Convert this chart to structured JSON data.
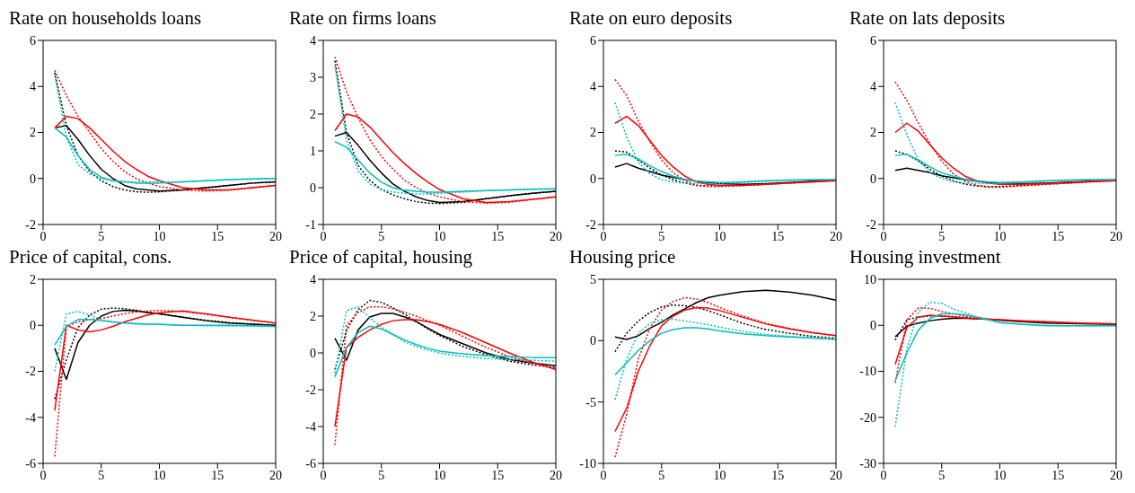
{
  "chart_data": [
    {
      "type": "line",
      "title": "Rate on households loans",
      "x": [
        1,
        2,
        3,
        4,
        5,
        6,
        7,
        8,
        9,
        10,
        12,
        14,
        16,
        18,
        20
      ],
      "xlim": [
        0,
        20
      ],
      "xticks": [
        0,
        5,
        10,
        15,
        20
      ],
      "ylim": [
        -2,
        6
      ],
      "yticks": [
        -2,
        0,
        2,
        4,
        6
      ],
      "marker": "none",
      "series": [
        {
          "color": "#000000",
          "line_style": "solid",
          "values": [
            2.2,
            2.3,
            1.7,
            1.0,
            0.4,
            0.0,
            -0.3,
            -0.45,
            -0.5,
            -0.55,
            -0.5,
            -0.4,
            -0.3,
            -0.2,
            -0.15
          ]
        },
        {
          "color": "#000000",
          "line_style": "dotted",
          "values": [
            4.6,
            2.3,
            1.0,
            0.3,
            -0.1,
            -0.35,
            -0.5,
            -0.58,
            -0.6,
            -0.58,
            -0.5,
            -0.4,
            -0.3,
            -0.2,
            -0.15
          ]
        },
        {
          "color": "#ff0000",
          "line_style": "solid",
          "values": [
            2.2,
            2.7,
            2.6,
            2.2,
            1.7,
            1.2,
            0.75,
            0.4,
            0.1,
            -0.1,
            -0.4,
            -0.5,
            -0.5,
            -0.4,
            -0.3
          ]
        },
        {
          "color": "#ff0000",
          "line_style": "dotted",
          "values": [
            4.7,
            3.6,
            2.7,
            2.0,
            1.3,
            0.75,
            0.3,
            0.0,
            -0.2,
            -0.35,
            -0.5,
            -0.55,
            -0.5,
            -0.4,
            -0.3
          ]
        },
        {
          "color": "#00bfbf",
          "line_style": "solid",
          "values": [
            2.2,
            1.8,
            1.0,
            0.4,
            0.05,
            -0.1,
            -0.15,
            -0.2,
            -0.2,
            -0.2,
            -0.15,
            -0.1,
            -0.05,
            -0.02,
            0.0
          ]
        },
        {
          "color": "#00bfbf",
          "line_style": "dotted",
          "values": [
            4.5,
            1.8,
            0.6,
            0.2,
            0.0,
            -0.1,
            -0.15,
            -0.15,
            -0.15,
            -0.15,
            -0.15,
            -0.1,
            -0.05,
            -0.02,
            0.0
          ]
        }
      ]
    },
    {
      "type": "line",
      "title": "Rate on firms loans",
      "x": [
        1,
        2,
        3,
        4,
        5,
        6,
        7,
        8,
        9,
        10,
        12,
        14,
        16,
        18,
        20
      ],
      "xlim": [
        0,
        20
      ],
      "xticks": [
        0,
        5,
        10,
        15,
        20
      ],
      "ylim": [
        -1,
        4
      ],
      "yticks": [
        -1,
        0,
        1,
        2,
        3,
        4
      ],
      "marker": "none",
      "series": [
        {
          "color": "#000000",
          "line_style": "solid",
          "values": [
            1.4,
            1.5,
            1.15,
            0.75,
            0.4,
            0.1,
            -0.1,
            -0.25,
            -0.35,
            -0.4,
            -0.38,
            -0.3,
            -0.22,
            -0.15,
            -0.1
          ]
        },
        {
          "color": "#000000",
          "line_style": "dotted",
          "values": [
            3.45,
            1.5,
            0.6,
            0.2,
            -0.05,
            -0.2,
            -0.3,
            -0.38,
            -0.42,
            -0.43,
            -0.4,
            -0.3,
            -0.22,
            -0.15,
            -0.1
          ]
        },
        {
          "color": "#ff0000",
          "line_style": "solid",
          "values": [
            1.55,
            2.0,
            1.92,
            1.65,
            1.3,
            0.95,
            0.65,
            0.38,
            0.15,
            -0.05,
            -0.3,
            -0.4,
            -0.38,
            -0.32,
            -0.25
          ]
        },
        {
          "color": "#ff0000",
          "line_style": "dotted",
          "values": [
            3.55,
            2.6,
            1.9,
            1.3,
            0.85,
            0.5,
            0.2,
            0.0,
            -0.15,
            -0.25,
            -0.38,
            -0.42,
            -0.4,
            -0.32,
            -0.25
          ]
        },
        {
          "color": "#00bfbf",
          "line_style": "solid",
          "values": [
            1.25,
            1.1,
            0.75,
            0.4,
            0.15,
            0.0,
            -0.07,
            -0.1,
            -0.12,
            -0.12,
            -0.1,
            -0.08,
            -0.06,
            -0.04,
            -0.03
          ]
        },
        {
          "color": "#00bfbf",
          "line_style": "dotted",
          "values": [
            3.3,
            1.3,
            0.45,
            0.1,
            -0.05,
            -0.12,
            -0.15,
            -0.17,
            -0.17,
            -0.15,
            -0.12,
            -0.08,
            -0.06,
            -0.04,
            -0.03
          ]
        }
      ]
    },
    {
      "type": "line",
      "title": "Rate on euro deposits",
      "x": [
        1,
        2,
        3,
        4,
        5,
        6,
        7,
        8,
        9,
        10,
        12,
        14,
        16,
        18,
        20
      ],
      "xlim": [
        0,
        20
      ],
      "xticks": [
        0,
        5,
        10,
        15,
        20
      ],
      "ylim": [
        -2,
        6
      ],
      "yticks": [
        -2,
        0,
        2,
        4,
        6
      ],
      "marker": "none",
      "series": [
        {
          "color": "#000000",
          "line_style": "solid",
          "values": [
            0.5,
            0.65,
            0.45,
            0.3,
            0.15,
            0.05,
            -0.05,
            -0.12,
            -0.18,
            -0.22,
            -0.25,
            -0.22,
            -0.18,
            -0.12,
            -0.08
          ]
        },
        {
          "color": "#000000",
          "line_style": "dotted",
          "values": [
            1.2,
            1.15,
            0.8,
            0.45,
            0.15,
            -0.05,
            -0.2,
            -0.3,
            -0.32,
            -0.32,
            -0.3,
            -0.25,
            -0.2,
            -0.13,
            -0.08
          ]
        },
        {
          "color": "#ff0000",
          "line_style": "solid",
          "values": [
            2.4,
            2.7,
            2.3,
            1.65,
            1.0,
            0.5,
            0.1,
            -0.15,
            -0.25,
            -0.3,
            -0.3,
            -0.25,
            -0.2,
            -0.15,
            -0.1
          ]
        },
        {
          "color": "#ff0000",
          "line_style": "dotted",
          "values": [
            4.3,
            3.6,
            2.5,
            1.6,
            0.8,
            0.25,
            -0.1,
            -0.3,
            -0.35,
            -0.35,
            -0.3,
            -0.25,
            -0.2,
            -0.15,
            -0.1
          ]
        },
        {
          "color": "#00bfbf",
          "line_style": "solid",
          "values": [
            1.0,
            1.05,
            0.85,
            0.55,
            0.3,
            0.1,
            -0.05,
            -0.12,
            -0.15,
            -0.18,
            -0.15,
            -0.1,
            -0.07,
            -0.05,
            -0.05
          ]
        },
        {
          "color": "#00bfbf",
          "line_style": "dotted",
          "values": [
            3.3,
            1.8,
            0.7,
            0.2,
            -0.05,
            -0.15,
            -0.2,
            -0.22,
            -0.22,
            -0.22,
            -0.18,
            -0.12,
            -0.08,
            -0.05,
            -0.05
          ]
        }
      ]
    },
    {
      "type": "line",
      "title": "Rate on lats deposits",
      "x": [
        1,
        2,
        3,
        4,
        5,
        6,
        7,
        8,
        9,
        10,
        12,
        14,
        16,
        18,
        20
      ],
      "xlim": [
        0,
        20
      ],
      "xticks": [
        0,
        5,
        10,
        15,
        20
      ],
      "ylim": [
        -2,
        6
      ],
      "yticks": [
        -2,
        0,
        2,
        4,
        6
      ],
      "marker": "none",
      "series": [
        {
          "color": "#000000",
          "line_style": "solid",
          "values": [
            0.35,
            0.45,
            0.35,
            0.25,
            0.12,
            0.03,
            -0.05,
            -0.12,
            -0.18,
            -0.2,
            -0.22,
            -0.2,
            -0.16,
            -0.12,
            -0.08
          ]
        },
        {
          "color": "#000000",
          "line_style": "dotted",
          "values": [
            1.2,
            1.05,
            0.75,
            0.4,
            0.1,
            -0.1,
            -0.25,
            -0.32,
            -0.35,
            -0.35,
            -0.3,
            -0.25,
            -0.2,
            -0.13,
            -0.08
          ]
        },
        {
          "color": "#ff0000",
          "line_style": "solid",
          "values": [
            2.0,
            2.4,
            2.05,
            1.45,
            0.9,
            0.45,
            0.1,
            -0.1,
            -0.2,
            -0.25,
            -0.25,
            -0.22,
            -0.18,
            -0.13,
            -0.1
          ]
        },
        {
          "color": "#ff0000",
          "line_style": "dotted",
          "values": [
            4.2,
            3.4,
            2.4,
            1.5,
            0.75,
            0.2,
            -0.12,
            -0.3,
            -0.38,
            -0.38,
            -0.32,
            -0.25,
            -0.2,
            -0.15,
            -0.1
          ]
        },
        {
          "color": "#00bfbf",
          "line_style": "solid",
          "values": [
            1.0,
            1.05,
            0.8,
            0.5,
            0.25,
            0.1,
            -0.03,
            -0.1,
            -0.15,
            -0.18,
            -0.15,
            -0.1,
            -0.07,
            -0.05,
            -0.05
          ]
        },
        {
          "color": "#00bfbf",
          "line_style": "dotted",
          "values": [
            3.3,
            1.9,
            0.8,
            0.25,
            0.0,
            -0.15,
            -0.2,
            -0.22,
            -0.22,
            -0.22,
            -0.18,
            -0.12,
            -0.08,
            -0.05,
            -0.05
          ]
        }
      ]
    },
    {
      "type": "line",
      "title": "Price of capital, cons.",
      "x": [
        1,
        2,
        3,
        4,
        5,
        6,
        7,
        8,
        9,
        10,
        12,
        14,
        16,
        18,
        20
      ],
      "xlim": [
        0,
        20
      ],
      "xticks": [
        0,
        5,
        10,
        15,
        20
      ],
      "ylim": [
        -6,
        2
      ],
      "yticks": [
        -6,
        -4,
        -2,
        0,
        2
      ],
      "marker": "none",
      "series": [
        {
          "color": "#000000",
          "line_style": "solid",
          "values": [
            -1.0,
            -2.35,
            -0.75,
            0.0,
            0.4,
            0.6,
            0.65,
            0.62,
            0.55,
            0.5,
            0.35,
            0.2,
            0.1,
            0.05,
            0.0
          ]
        },
        {
          "color": "#000000",
          "line_style": "dotted",
          "values": [
            -3.2,
            -1.5,
            -0.1,
            0.45,
            0.7,
            0.75,
            0.72,
            0.65,
            0.58,
            0.5,
            0.35,
            0.22,
            0.12,
            0.05,
            0.0
          ]
        },
        {
          "color": "#ff0000",
          "line_style": "solid",
          "values": [
            -3.7,
            0.0,
            -0.2,
            -0.28,
            -0.2,
            -0.05,
            0.15,
            0.3,
            0.45,
            0.55,
            0.62,
            0.5,
            0.35,
            0.22,
            0.1
          ]
        },
        {
          "color": "#ff0000",
          "line_style": "dotted",
          "values": [
            -5.7,
            -0.05,
            0.15,
            0.25,
            0.3,
            0.4,
            0.5,
            0.58,
            0.62,
            0.65,
            0.6,
            0.48,
            0.35,
            0.22,
            0.1
          ]
        },
        {
          "color": "#00bfbf",
          "line_style": "solid",
          "values": [
            -0.85,
            -0.05,
            0.25,
            0.25,
            0.2,
            0.15,
            0.1,
            0.08,
            0.05,
            0.05,
            0.0,
            0.0,
            0.0,
            -0.02,
            -0.05
          ]
        },
        {
          "color": "#00bfbf",
          "line_style": "dotted",
          "values": [
            -2.0,
            0.5,
            0.6,
            0.45,
            0.25,
            0.15,
            0.1,
            0.05,
            0.05,
            0.03,
            0.0,
            -0.02,
            -0.03,
            -0.03,
            -0.05
          ]
        }
      ]
    },
    {
      "type": "line",
      "title": "Price of capital, housing",
      "x": [
        1,
        2,
        3,
        4,
        5,
        6,
        7,
        8,
        9,
        10,
        12,
        14,
        16,
        18,
        20
      ],
      "xlim": [
        0,
        20
      ],
      "xticks": [
        0,
        5,
        10,
        15,
        20
      ],
      "ylim": [
        -6,
        4
      ],
      "yticks": [
        -6,
        -4,
        -2,
        0,
        2,
        4
      ],
      "marker": "none",
      "series": [
        {
          "color": "#000000",
          "line_style": "solid",
          "values": [
            0.8,
            -0.4,
            1.25,
            1.95,
            2.15,
            2.15,
            1.95,
            1.7,
            1.35,
            1.0,
            0.5,
            0.0,
            -0.35,
            -0.55,
            -0.7
          ]
        },
        {
          "color": "#000000",
          "line_style": "dotted",
          "values": [
            -0.9,
            1.2,
            2.35,
            2.85,
            2.75,
            2.45,
            2.1,
            1.7,
            1.3,
            0.95,
            0.35,
            -0.1,
            -0.45,
            -0.65,
            -0.8
          ]
        },
        {
          "color": "#ff0000",
          "line_style": "solid",
          "values": [
            -4.0,
            0.3,
            0.85,
            1.25,
            1.55,
            1.75,
            1.8,
            1.8,
            1.7,
            1.55,
            1.1,
            0.55,
            0.0,
            -0.5,
            -0.9
          ]
        },
        {
          "color": "#ff0000",
          "line_style": "dotted",
          "values": [
            -5.0,
            1.5,
            2.2,
            2.5,
            2.5,
            2.4,
            2.2,
            2.0,
            1.75,
            1.5,
            0.9,
            0.3,
            -0.2,
            -0.55,
            -0.85
          ]
        },
        {
          "color": "#00bfbf",
          "line_style": "solid",
          "values": [
            -1.3,
            0.3,
            1.1,
            1.45,
            1.3,
            1.0,
            0.7,
            0.45,
            0.25,
            0.1,
            -0.05,
            -0.15,
            -0.2,
            -0.25,
            -0.25
          ]
        },
        {
          "color": "#00bfbf",
          "line_style": "dotted",
          "values": [
            -1.1,
            2.3,
            2.5,
            1.9,
            1.4,
            1.0,
            0.6,
            0.35,
            0.15,
            0.0,
            -0.2,
            -0.3,
            -0.35,
            -0.4,
            -0.45
          ]
        }
      ]
    },
    {
      "type": "line",
      "title": "Housing price",
      "x": [
        1,
        2,
        3,
        4,
        5,
        6,
        7,
        8,
        9,
        10,
        12,
        14,
        16,
        18,
        20
      ],
      "xlim": [
        0,
        20
      ],
      "xticks": [
        0,
        5,
        10,
        15,
        20
      ],
      "ylim": [
        -10,
        5
      ],
      "yticks": [
        -10,
        -5,
        0,
        5
      ],
      "marker": "none",
      "series": [
        {
          "color": "#000000",
          "line_style": "solid",
          "values": [
            0.3,
            0.1,
            0.4,
            1.0,
            1.5,
            2.1,
            2.6,
            3.1,
            3.5,
            3.7,
            4.0,
            4.1,
            3.95,
            3.7,
            3.3
          ]
        },
        {
          "color": "#000000",
          "line_style": "dotted",
          "values": [
            -0.9,
            0.6,
            1.6,
            2.3,
            2.75,
            2.9,
            2.85,
            2.7,
            2.45,
            2.1,
            1.4,
            0.9,
            0.6,
            0.35,
            0.2
          ]
        },
        {
          "color": "#ff0000",
          "line_style": "solid",
          "values": [
            -7.4,
            -5.5,
            -2.5,
            -0.4,
            1.2,
            2.0,
            2.5,
            2.7,
            2.65,
            2.45,
            1.9,
            1.35,
            0.95,
            0.65,
            0.4
          ]
        },
        {
          "color": "#ff0000",
          "line_style": "dotted",
          "values": [
            -9.5,
            -6.0,
            -1.5,
            1.0,
            2.5,
            3.2,
            3.5,
            3.4,
            3.1,
            2.7,
            2.0,
            1.4,
            1.0,
            0.65,
            0.4
          ]
        },
        {
          "color": "#00bfbf",
          "line_style": "solid",
          "values": [
            -2.8,
            -1.8,
            -0.8,
            0.0,
            0.6,
            0.9,
            1.05,
            1.05,
            0.95,
            0.8,
            0.55,
            0.4,
            0.3,
            0.2,
            0.1
          ]
        },
        {
          "color": "#00bfbf",
          "line_style": "dotted",
          "values": [
            -4.8,
            -1.5,
            0.6,
            1.4,
            1.7,
            1.75,
            1.6,
            1.45,
            1.3,
            1.1,
            0.75,
            0.5,
            0.35,
            0.25,
            0.1
          ]
        }
      ]
    },
    {
      "type": "line",
      "title": "Housing investment",
      "x": [
        1,
        2,
        3,
        4,
        5,
        6,
        7,
        8,
        9,
        10,
        12,
        14,
        16,
        18,
        20
      ],
      "xlim": [
        0,
        20
      ],
      "xticks": [
        0,
        5,
        10,
        15,
        20
      ],
      "ylim": [
        -30,
        10
      ],
      "yticks": [
        -30,
        -20,
        -10,
        0,
        10
      ],
      "marker": "none",
      "series": [
        {
          "color": "#000000",
          "line_style": "solid",
          "values": [
            -2.5,
            -0.2,
            0.5,
            1.0,
            1.3,
            1.5,
            1.5,
            1.4,
            1.3,
            1.1,
            0.8,
            0.5,
            0.4,
            0.3,
            0.2
          ]
        },
        {
          "color": "#000000",
          "line_style": "dotted",
          "values": [
            -3.2,
            1.2,
            1.8,
            2.0,
            2.0,
            1.9,
            1.7,
            1.5,
            1.3,
            1.1,
            0.8,
            0.6,
            0.5,
            0.4,
            0.3
          ]
        },
        {
          "color": "#ff0000",
          "line_style": "solid",
          "values": [
            -8.5,
            -0.5,
            1.8,
            2.2,
            2.0,
            1.8,
            1.6,
            1.4,
            1.3,
            1.2,
            1.0,
            0.8,
            0.6,
            0.4,
            0.3
          ]
        },
        {
          "color": "#ff0000",
          "line_style": "dotted",
          "values": [
            -12.5,
            1.2,
            3.8,
            3.7,
            3.0,
            2.5,
            2.0,
            1.7,
            1.4,
            1.2,
            0.9,
            0.7,
            0.5,
            0.4,
            0.3
          ]
        },
        {
          "color": "#00bfbf",
          "line_style": "solid",
          "values": [
            -12.0,
            -6.0,
            -1.0,
            1.5,
            2.5,
            2.5,
            2.3,
            1.8,
            1.2,
            0.6,
            0.2,
            -0.1,
            -0.1,
            -0.1,
            -0.1
          ]
        },
        {
          "color": "#00bfbf",
          "line_style": "dotted",
          "values": [
            -22.0,
            -5.0,
            3.0,
            5.0,
            4.8,
            3.5,
            2.8,
            1.8,
            1.2,
            0.6,
            0.2,
            0.0,
            -0.1,
            -0.1,
            -0.1
          ]
        }
      ]
    }
  ]
}
